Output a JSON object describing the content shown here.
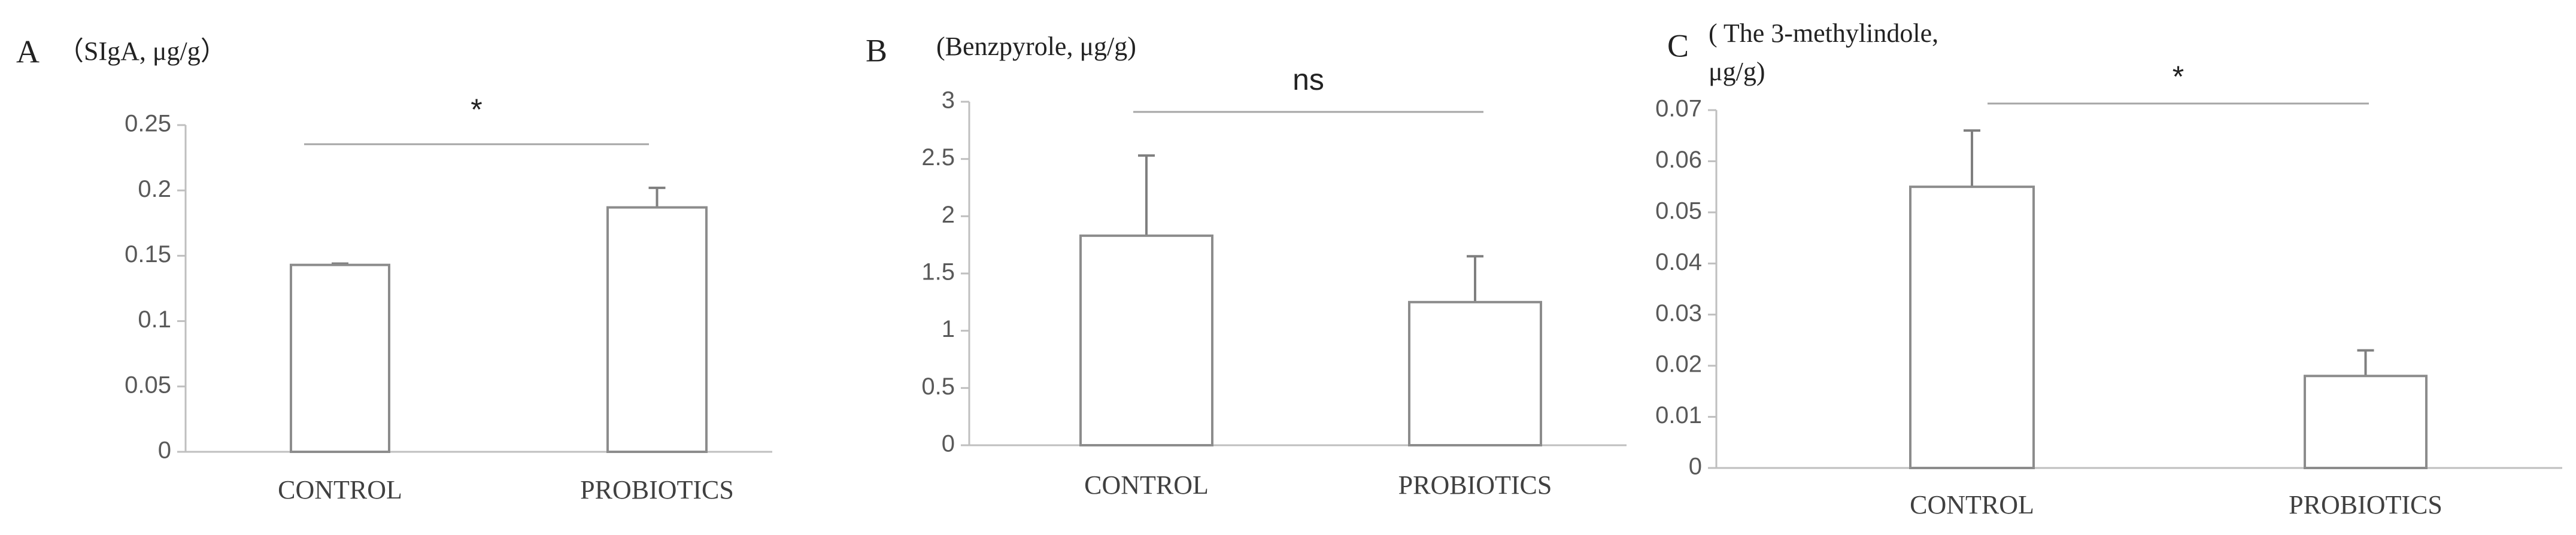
{
  "chart_data": [
    {
      "type": "bar",
      "panel_label": "A",
      "title_lines": [
        "（SIgA, μg/g）"
      ],
      "categories": [
        "CONTROL",
        "PROBIOTICS"
      ],
      "values": [
        0.143,
        0.187
      ],
      "errors": [
        0.001,
        0.015
      ],
      "ylim": [
        0,
        0.25
      ],
      "yticks": [
        0,
        0.05,
        0.1,
        0.15,
        0.2,
        0.25
      ],
      "annotation": "*",
      "color": "#ffffff"
    },
    {
      "type": "bar",
      "panel_label": "B",
      "title_lines": [
        "(Benzpyrole, μg/g)"
      ],
      "categories": [
        "CONTROL",
        "PROBIOTICS"
      ],
      "values": [
        1.83,
        1.25
      ],
      "errors": [
        0.7,
        0.4
      ],
      "ylim": [
        0,
        3
      ],
      "yticks": [
        0,
        0.5,
        1,
        1.5,
        2,
        2.5,
        3
      ],
      "annotation": "ns",
      "color": "#ffffff"
    },
    {
      "type": "bar",
      "panel_label": "C",
      "title_lines": [
        "( The 3-methylindole,",
        "μg/g)"
      ],
      "categories": [
        "CONTROL",
        "PROBIOTICS"
      ],
      "values": [
        0.055,
        0.018
      ],
      "errors": [
        0.011,
        0.005
      ],
      "ylim": [
        0,
        0.07
      ],
      "yticks": [
        0,
        0.01,
        0.02,
        0.03,
        0.04,
        0.05,
        0.06,
        0.07
      ],
      "annotation": "*",
      "color": "#ffffff"
    }
  ]
}
